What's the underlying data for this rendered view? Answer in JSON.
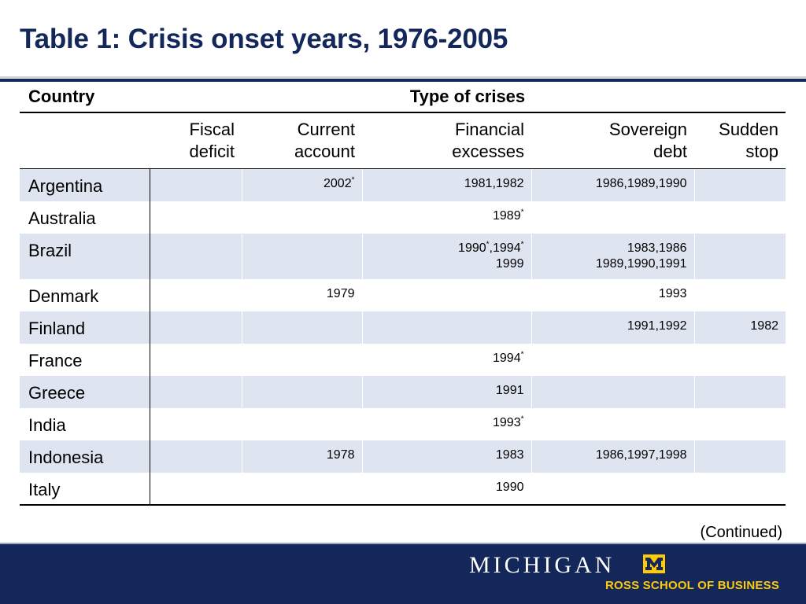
{
  "title": "Table 1: Crisis onset years, 1976-2005",
  "table": {
    "country_header": "Country",
    "type_header": "Type of crises",
    "columns": [
      {
        "line1": "Fiscal",
        "line2": "deficit"
      },
      {
        "line1": "Current",
        "line2": "account"
      },
      {
        "line1": "Financial",
        "line2": "excesses"
      },
      {
        "line1": "Sovereign",
        "line2": "debt"
      },
      {
        "line1": "Sudden",
        "line2": "stop"
      }
    ],
    "rows": [
      {
        "country": "Argentina",
        "cells": [
          [
            ""
          ],
          [
            "2002*"
          ],
          [
            "1981,1982"
          ],
          [
            "1986,1989,1990"
          ],
          [
            ""
          ]
        ]
      },
      {
        "country": "Australia",
        "cells": [
          [
            ""
          ],
          [
            ""
          ],
          [
            "1989*"
          ],
          [
            ""
          ],
          [
            ""
          ]
        ]
      },
      {
        "country": "Brazil",
        "cells": [
          [
            ""
          ],
          [
            ""
          ],
          [
            "1990*,1994*",
            "1999"
          ],
          [
            "1983,1986",
            "1989,1990,1991"
          ],
          [
            ""
          ]
        ]
      },
      {
        "country": "Denmark",
        "cells": [
          [
            ""
          ],
          [
            "1979"
          ],
          [
            ""
          ],
          [
            "1993"
          ],
          [
            ""
          ]
        ]
      },
      {
        "country": "Finland",
        "cells": [
          [
            ""
          ],
          [
            ""
          ],
          [
            ""
          ],
          [
            "1991,1992"
          ],
          [
            "1982"
          ]
        ]
      },
      {
        "country": "France",
        "cells": [
          [
            ""
          ],
          [
            ""
          ],
          [
            "1994*"
          ],
          [
            ""
          ],
          [
            ""
          ]
        ]
      },
      {
        "country": "Greece",
        "cells": [
          [
            ""
          ],
          [
            ""
          ],
          [
            "1991"
          ],
          [
            ""
          ],
          [
            ""
          ]
        ]
      },
      {
        "country": "India",
        "cells": [
          [
            ""
          ],
          [
            ""
          ],
          [
            "1993*"
          ],
          [
            ""
          ],
          [
            ""
          ]
        ]
      },
      {
        "country": "Indonesia",
        "cells": [
          [
            ""
          ],
          [
            "1978"
          ],
          [
            "1983"
          ],
          [
            "1986,1997,1998"
          ],
          [
            ""
          ]
        ]
      },
      {
        "country": "Italy",
        "cells": [
          [
            ""
          ],
          [
            ""
          ],
          [
            "1990"
          ],
          [
            ""
          ],
          [
            ""
          ]
        ]
      }
    ]
  },
  "note": "(Continued)",
  "footer": {
    "university": "MICHIGAN",
    "logo_letter": "M",
    "school": "ROSS SCHOOL OF BUSINESS",
    "colors": {
      "navy": "#14275a",
      "maize": "#ffcb05",
      "row_shade": "#dfe4f1"
    }
  }
}
